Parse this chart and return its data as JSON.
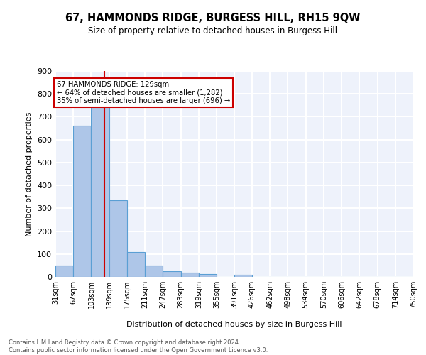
{
  "title": "67, HAMMONDS RIDGE, BURGESS HILL, RH15 9QW",
  "subtitle": "Size of property relative to detached houses in Burgess Hill",
  "xlabel": "Distribution of detached houses by size in Burgess Hill",
  "ylabel": "Number of detached properties",
  "bin_edges": [
    31,
    67,
    103,
    139,
    175,
    211,
    247,
    283,
    319,
    355,
    391,
    426,
    462,
    498,
    534,
    570,
    606,
    642,
    678,
    714,
    750
  ],
  "bin_labels": [
    "31sqm",
    "67sqm",
    "103sqm",
    "139sqm",
    "175sqm",
    "211sqm",
    "247sqm",
    "283sqm",
    "319sqm",
    "355sqm",
    "391sqm",
    "426sqm",
    "462sqm",
    "498sqm",
    "534sqm",
    "570sqm",
    "606sqm",
    "642sqm",
    "678sqm",
    "714sqm",
    "750sqm"
  ],
  "bar_heights": [
    50,
    660,
    748,
    335,
    108,
    50,
    25,
    18,
    12,
    0,
    8,
    0,
    0,
    0,
    0,
    0,
    0,
    0,
    0,
    0
  ],
  "bar_color": "#aec6e8",
  "bar_edgecolor": "#5a9fd4",
  "property_size": 129,
  "vline_color": "#cc0000",
  "annotation_line1": "67 HAMMONDS RIDGE: 129sqm",
  "annotation_line2": "← 64% of detached houses are smaller (1,282)",
  "annotation_line3": "35% of semi-detached houses are larger (696) →",
  "annotation_box_edgecolor": "#cc0000",
  "ylim": [
    0,
    900
  ],
  "yticks": [
    0,
    100,
    200,
    300,
    400,
    500,
    600,
    700,
    800,
    900
  ],
  "background_color": "#eef2fb",
  "grid_color": "#ffffff",
  "footer_line1": "Contains HM Land Registry data © Crown copyright and database right 2024.",
  "footer_line2": "Contains public sector information licensed under the Open Government Licence v3.0."
}
